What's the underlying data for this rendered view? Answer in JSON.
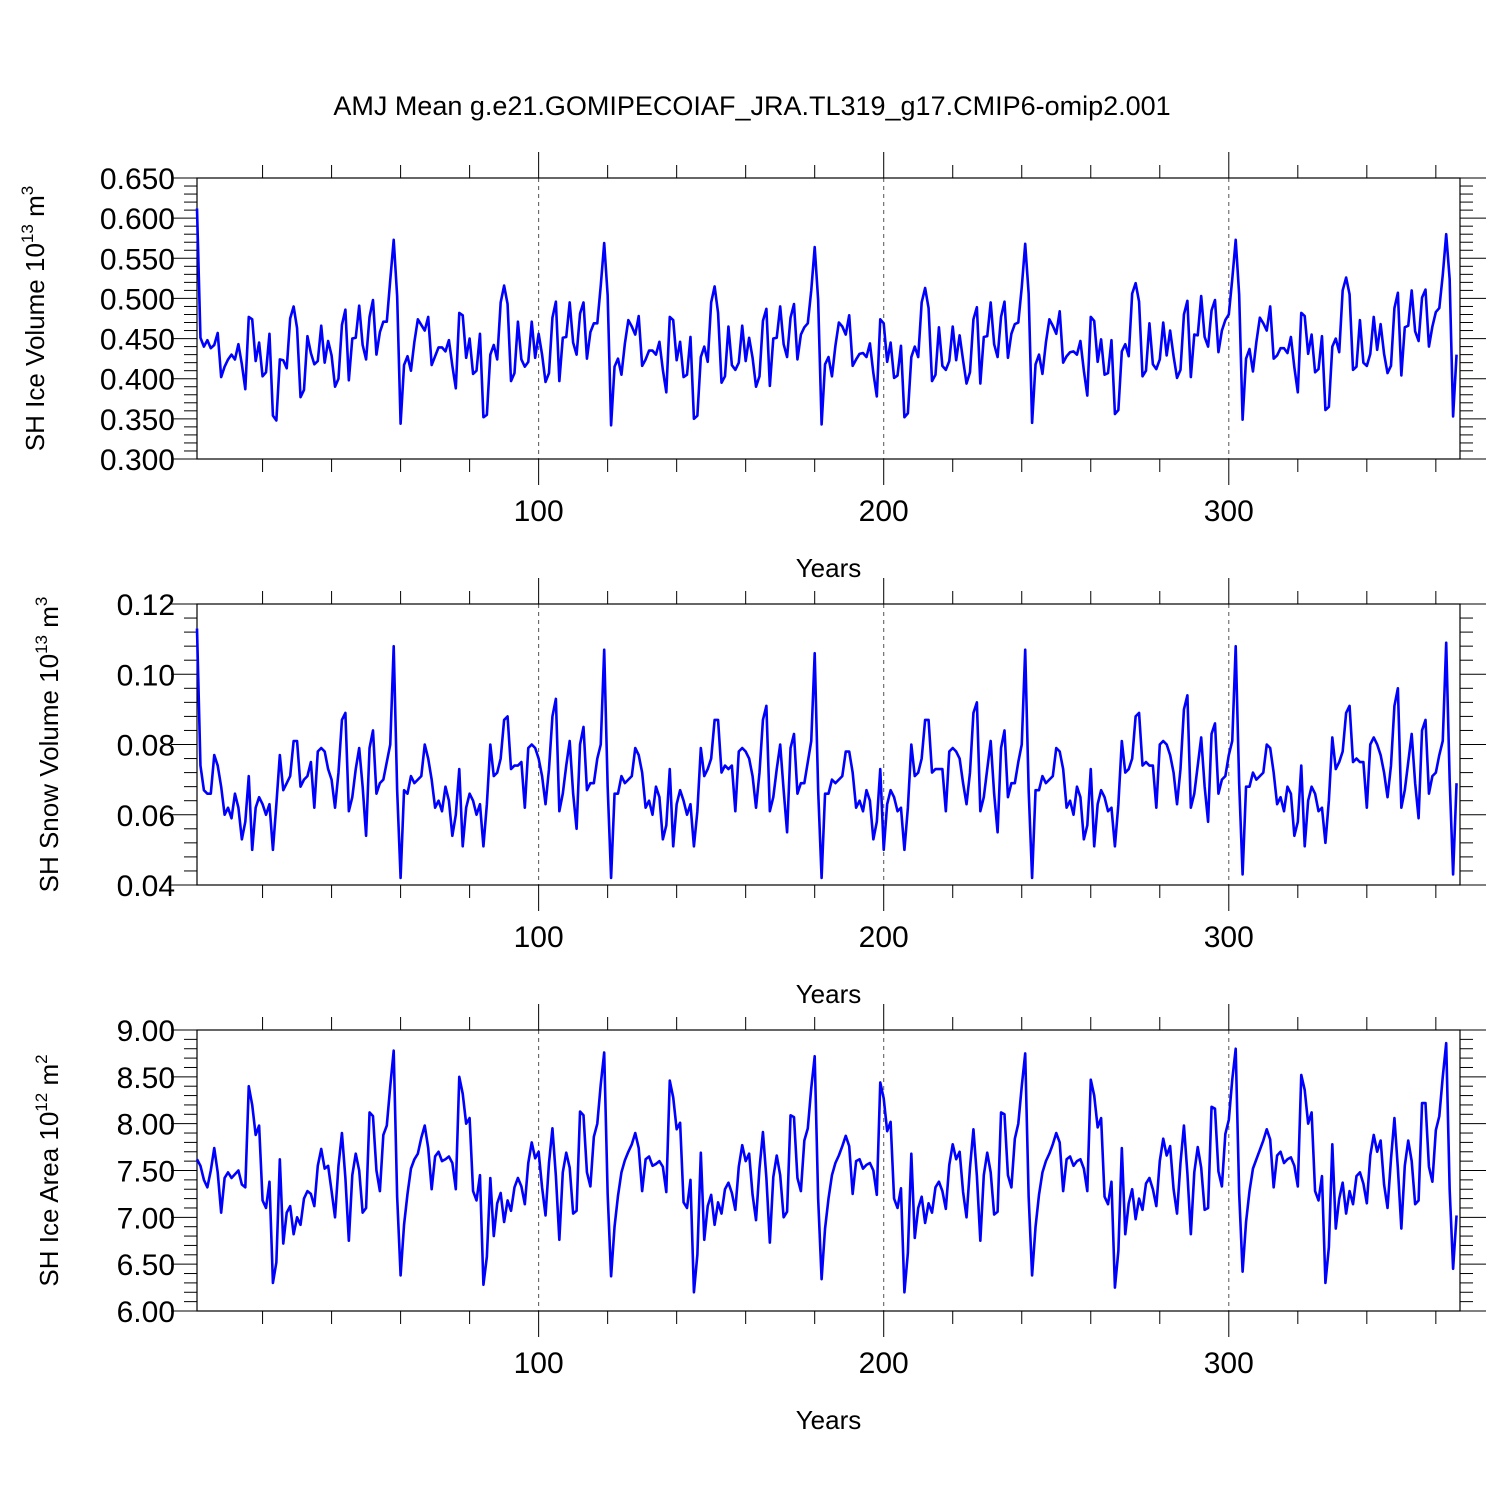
{
  "title": "AMJ Mean g.e21.GOMIPECOIAF_JRA.TL319_g17.CMIP6-omip2.001",
  "line_color": "#0000ff",
  "chart_data": [
    {
      "type": "line",
      "name": "ice-volume",
      "ylabel": {
        "main": "SH Ice Volume 10",
        "exp1": "13",
        "mid": " m",
        "exp2": "3"
      },
      "xlabel": "Years",
      "xlim": [
        1,
        367
      ],
      "ylim": [
        0.3,
        0.65
      ],
      "yticks": [
        0.3,
        0.35,
        0.4,
        0.45,
        0.5,
        0.55,
        0.6,
        0.65
      ],
      "ytick_labels": [
        "0.300",
        "0.350",
        "0.400",
        "0.450",
        "0.500",
        "0.550",
        "0.600",
        "0.650"
      ],
      "xticks": [
        100,
        200,
        300
      ],
      "xtick_labels": [
        "100",
        "200",
        "300"
      ],
      "vlines": [
        100,
        200,
        300
      ],
      "x_start": 1,
      "values": [
        0.612,
        0.451,
        0.44,
        0.448,
        0.438,
        0.442,
        0.457,
        0.402,
        0.415,
        0.424,
        0.43,
        0.424,
        0.443,
        0.418,
        0.387,
        0.477,
        0.474,
        0.422,
        0.445,
        0.403,
        0.408,
        0.456,
        0.354,
        0.348,
        0.424,
        0.423,
        0.413,
        0.475,
        0.49,
        0.463,
        0.377,
        0.386,
        0.453,
        0.432,
        0.418,
        0.422,
        0.466,
        0.42,
        0.447,
        0.429,
        0.39,
        0.4,
        0.467,
        0.486,
        0.398,
        0.45,
        0.451,
        0.491,
        0.442,
        0.424,
        0.477,
        0.498,
        0.43,
        0.458,
        0.471,
        0.471,
        0.523,
        0.573,
        0.503,
        0.344,
        0.417,
        0.428,
        0.41,
        0.446,
        0.474,
        0.467,
        0.46,
        0.477,
        0.417,
        0.428,
        0.439,
        0.439,
        0.434,
        0.448,
        0.416,
        0.388,
        0.482,
        0.479,
        0.426,
        0.45,
        0.406,
        0.41,
        0.456,
        0.352,
        0.355,
        0.43,
        0.442,
        0.424,
        0.495,
        0.516,
        0.493,
        0.397,
        0.407,
        0.471,
        0.424,
        0.415,
        0.421,
        0.471,
        0.426,
        0.456,
        0.43,
        0.396,
        0.407,
        0.476,
        0.496,
        0.397,
        0.451,
        0.452,
        0.495,
        0.445,
        0.43,
        0.481,
        0.495,
        0.425,
        0.458,
        0.469,
        0.469,
        0.516,
        0.569,
        0.504,
        0.342,
        0.415,
        0.425,
        0.405,
        0.444,
        0.473,
        0.465,
        0.455,
        0.478,
        0.416,
        0.424,
        0.435,
        0.435,
        0.43,
        0.446,
        0.411,
        0.383,
        0.477,
        0.473,
        0.423,
        0.446,
        0.402,
        0.405,
        0.452,
        0.35,
        0.354,
        0.427,
        0.44,
        0.421,
        0.495,
        0.515,
        0.482,
        0.395,
        0.403,
        0.465,
        0.417,
        0.411,
        0.42,
        0.466,
        0.422,
        0.451,
        0.426,
        0.39,
        0.403,
        0.472,
        0.487,
        0.391,
        0.45,
        0.451,
        0.49,
        0.443,
        0.427,
        0.476,
        0.493,
        0.424,
        0.455,
        0.464,
        0.469,
        0.51,
        0.564,
        0.498,
        0.343,
        0.418,
        0.427,
        0.403,
        0.441,
        0.47,
        0.465,
        0.455,
        0.479,
        0.416,
        0.424,
        0.431,
        0.432,
        0.427,
        0.444,
        0.407,
        0.378,
        0.474,
        0.469,
        0.421,
        0.445,
        0.401,
        0.404,
        0.441,
        0.352,
        0.357,
        0.427,
        0.44,
        0.427,
        0.495,
        0.513,
        0.488,
        0.397,
        0.405,
        0.464,
        0.416,
        0.411,
        0.422,
        0.465,
        0.423,
        0.454,
        0.423,
        0.394,
        0.408,
        0.474,
        0.489,
        0.394,
        0.452,
        0.453,
        0.495,
        0.443,
        0.427,
        0.477,
        0.496,
        0.426,
        0.456,
        0.468,
        0.47,
        0.514,
        0.568,
        0.506,
        0.345,
        0.418,
        0.43,
        0.406,
        0.445,
        0.474,
        0.466,
        0.456,
        0.484,
        0.42,
        0.428,
        0.433,
        0.434,
        0.43,
        0.447,
        0.41,
        0.379,
        0.477,
        0.472,
        0.421,
        0.449,
        0.405,
        0.407,
        0.448,
        0.356,
        0.361,
        0.434,
        0.443,
        0.428,
        0.506,
        0.519,
        0.496,
        0.403,
        0.41,
        0.469,
        0.418,
        0.412,
        0.424,
        0.47,
        0.429,
        0.46,
        0.428,
        0.401,
        0.411,
        0.48,
        0.497,
        0.402,
        0.455,
        0.454,
        0.503,
        0.452,
        0.44,
        0.485,
        0.498,
        0.433,
        0.46,
        0.473,
        0.48,
        0.524,
        0.573,
        0.505,
        0.349,
        0.425,
        0.437,
        0.409,
        0.446,
        0.476,
        0.469,
        0.46,
        0.49,
        0.425,
        0.429,
        0.438,
        0.438,
        0.432,
        0.452,
        0.414,
        0.383,
        0.482,
        0.478,
        0.431,
        0.455,
        0.408,
        0.412,
        0.453,
        0.361,
        0.365,
        0.44,
        0.45,
        0.433,
        0.51,
        0.526,
        0.505,
        0.411,
        0.415,
        0.473,
        0.42,
        0.416,
        0.431,
        0.477,
        0.436,
        0.468,
        0.431,
        0.407,
        0.416,
        0.488,
        0.507,
        0.404,
        0.464,
        0.466,
        0.51,
        0.459,
        0.447,
        0.501,
        0.511,
        0.44,
        0.465,
        0.483,
        0.488,
        0.529,
        0.58,
        0.524,
        0.353,
        0.43
      ]
    },
    {
      "type": "line",
      "name": "snow-volume",
      "ylabel": {
        "main": "SH Snow Volume 10",
        "exp1": "13",
        "mid": " m",
        "exp2": "3"
      },
      "xlabel": "Years",
      "xlim": [
        1,
        367
      ],
      "ylim": [
        0.04,
        0.12
      ],
      "yticks": [
        0.04,
        0.06,
        0.08,
        0.1,
        0.12
      ],
      "ytick_labels": [
        "0.04",
        "0.06",
        "0.08",
        "0.10",
        "0.12"
      ],
      "xticks": [
        100,
        200,
        300
      ],
      "xtick_labels": [
        "100",
        "200",
        "300"
      ],
      "vlines": [
        100,
        200,
        300
      ],
      "x_start": 1,
      "values": [
        0.113,
        0.074,
        0.067,
        0.066,
        0.066,
        0.077,
        0.074,
        0.068,
        0.06,
        0.062,
        0.059,
        0.066,
        0.062,
        0.053,
        0.058,
        0.071,
        0.05,
        0.062,
        0.065,
        0.063,
        0.06,
        0.063,
        0.05,
        0.063,
        0.077,
        0.067,
        0.069,
        0.071,
        0.081,
        0.081,
        0.068,
        0.07,
        0.071,
        0.075,
        0.062,
        0.078,
        0.079,
        0.078,
        0.073,
        0.07,
        0.062,
        0.072,
        0.087,
        0.089,
        0.061,
        0.065,
        0.073,
        0.079,
        0.068,
        0.054,
        0.079,
        0.084,
        0.066,
        0.069,
        0.07,
        0.075,
        0.08,
        0.108,
        0.067,
        0.042,
        0.067,
        0.066,
        0.071,
        0.069,
        0.07,
        0.071,
        0.08,
        0.076,
        0.07,
        0.062,
        0.064,
        0.061,
        0.068,
        0.064,
        0.054,
        0.06,
        0.073,
        0.051,
        0.062,
        0.066,
        0.064,
        0.06,
        0.063,
        0.051,
        0.063,
        0.08,
        0.071,
        0.072,
        0.076,
        0.087,
        0.088,
        0.073,
        0.074,
        0.074,
        0.075,
        0.062,
        0.079,
        0.08,
        0.079,
        0.076,
        0.071,
        0.063,
        0.073,
        0.088,
        0.093,
        0.061,
        0.066,
        0.074,
        0.081,
        0.066,
        0.056,
        0.08,
        0.085,
        0.067,
        0.069,
        0.069,
        0.076,
        0.08,
        0.107,
        0.068,
        0.042,
        0.066,
        0.066,
        0.071,
        0.069,
        0.07,
        0.071,
        0.079,
        0.077,
        0.072,
        0.062,
        0.064,
        0.06,
        0.068,
        0.065,
        0.053,
        0.057,
        0.073,
        0.051,
        0.063,
        0.067,
        0.064,
        0.06,
        0.063,
        0.051,
        0.061,
        0.079,
        0.071,
        0.073,
        0.076,
        0.087,
        0.087,
        0.072,
        0.074,
        0.073,
        0.074,
        0.061,
        0.078,
        0.079,
        0.078,
        0.076,
        0.071,
        0.062,
        0.072,
        0.087,
        0.091,
        0.061,
        0.065,
        0.073,
        0.08,
        0.067,
        0.055,
        0.079,
        0.083,
        0.066,
        0.069,
        0.069,
        0.075,
        0.081,
        0.106,
        0.067,
        0.042,
        0.066,
        0.066,
        0.07,
        0.069,
        0.07,
        0.071,
        0.078,
        0.078,
        0.072,
        0.062,
        0.064,
        0.061,
        0.067,
        0.064,
        0.053,
        0.058,
        0.073,
        0.05,
        0.063,
        0.067,
        0.065,
        0.061,
        0.062,
        0.05,
        0.062,
        0.08,
        0.071,
        0.072,
        0.076,
        0.087,
        0.087,
        0.072,
        0.073,
        0.073,
        0.073,
        0.061,
        0.078,
        0.079,
        0.078,
        0.076,
        0.069,
        0.063,
        0.072,
        0.089,
        0.092,
        0.061,
        0.065,
        0.073,
        0.081,
        0.066,
        0.055,
        0.079,
        0.084,
        0.065,
        0.069,
        0.069,
        0.075,
        0.08,
        0.107,
        0.067,
        0.042,
        0.067,
        0.067,
        0.071,
        0.069,
        0.07,
        0.071,
        0.079,
        0.078,
        0.073,
        0.062,
        0.064,
        0.06,
        0.068,
        0.065,
        0.053,
        0.057,
        0.073,
        0.051,
        0.063,
        0.067,
        0.065,
        0.061,
        0.062,
        0.051,
        0.063,
        0.081,
        0.072,
        0.073,
        0.076,
        0.088,
        0.089,
        0.074,
        0.075,
        0.074,
        0.074,
        0.062,
        0.08,
        0.081,
        0.08,
        0.077,
        0.072,
        0.063,
        0.073,
        0.09,
        0.094,
        0.062,
        0.066,
        0.074,
        0.082,
        0.068,
        0.058,
        0.083,
        0.086,
        0.066,
        0.07,
        0.071,
        0.077,
        0.081,
        0.108,
        0.069,
        0.043,
        0.068,
        0.068,
        0.072,
        0.07,
        0.071,
        0.072,
        0.08,
        0.079,
        0.072,
        0.063,
        0.065,
        0.061,
        0.068,
        0.066,
        0.054,
        0.058,
        0.074,
        0.051,
        0.064,
        0.068,
        0.066,
        0.061,
        0.062,
        0.052,
        0.064,
        0.082,
        0.073,
        0.075,
        0.078,
        0.089,
        0.091,
        0.075,
        0.076,
        0.075,
        0.075,
        0.062,
        0.08,
        0.082,
        0.08,
        0.077,
        0.072,
        0.065,
        0.074,
        0.091,
        0.096,
        0.062,
        0.067,
        0.075,
        0.083,
        0.069,
        0.059,
        0.084,
        0.087,
        0.066,
        0.071,
        0.072,
        0.077,
        0.081,
        0.109,
        0.07,
        0.043,
        0.069
      ]
    },
    {
      "type": "line",
      "name": "ice-area",
      "ylabel": {
        "main": "SH Ice Area 10",
        "exp1": "12",
        "mid": " m",
        "exp2": "2"
      },
      "xlabel": "Years",
      "xlim": [
        1,
        367
      ],
      "ylim": [
        6.0,
        9.0
      ],
      "yticks": [
        6.0,
        6.5,
        7.0,
        7.5,
        8.0,
        8.5,
        9.0
      ],
      "ytick_labels": [
        "6.00",
        "6.50",
        "7.00",
        "7.50",
        "8.00",
        "8.50",
        "9.00"
      ],
      "xticks": [
        100,
        200,
        300
      ],
      "xtick_labels": [
        "100",
        "200",
        "300"
      ],
      "vlines": [
        100,
        200,
        300
      ],
      "x_start": 1,
      "values": [
        7.62,
        7.55,
        7.4,
        7.32,
        7.5,
        7.74,
        7.48,
        7.05,
        7.42,
        7.48,
        7.42,
        7.46,
        7.5,
        7.35,
        7.32,
        8.4,
        8.2,
        7.88,
        7.98,
        7.18,
        7.1,
        7.38,
        6.3,
        6.52,
        7.62,
        6.72,
        7.05,
        7.12,
        6.82,
        7.0,
        6.92,
        7.2,
        7.28,
        7.25,
        7.12,
        7.55,
        7.73,
        7.52,
        7.55,
        7.28,
        7.0,
        7.55,
        7.9,
        7.42,
        6.75,
        7.45,
        7.68,
        7.5,
        7.05,
        7.1,
        8.12,
        8.08,
        7.5,
        7.28,
        7.88,
        7.98,
        8.4,
        8.78,
        7.22,
        6.38,
        6.92,
        7.25,
        7.52,
        7.62,
        7.68,
        7.85,
        7.98,
        7.74,
        7.3,
        7.65,
        7.7,
        7.6,
        7.62,
        7.65,
        7.58,
        7.3,
        8.5,
        8.32,
        8.0,
        8.06,
        7.28,
        7.18,
        7.45,
        6.28,
        6.58,
        7.42,
        6.8,
        7.15,
        7.26,
        6.95,
        7.18,
        7.07,
        7.32,
        7.42,
        7.33,
        7.14,
        7.58,
        7.8,
        7.63,
        7.7,
        7.32,
        7.02,
        7.58,
        7.95,
        7.44,
        6.76,
        7.48,
        7.69,
        7.53,
        7.04,
        7.07,
        8.13,
        8.09,
        7.48,
        7.33,
        7.86,
        8.0,
        8.42,
        8.76,
        7.25,
        6.37,
        6.9,
        7.23,
        7.48,
        7.61,
        7.7,
        7.78,
        7.9,
        7.74,
        7.28,
        7.62,
        7.65,
        7.55,
        7.57,
        7.6,
        7.54,
        7.27,
        8.46,
        8.28,
        7.94,
        8.01,
        7.16,
        7.1,
        7.4,
        6.2,
        6.6,
        7.69,
        6.76,
        7.12,
        7.24,
        6.92,
        7.16,
        7.04,
        7.3,
        7.37,
        7.26,
        7.08,
        7.54,
        7.77,
        7.6,
        7.68,
        7.24,
        6.97,
        7.52,
        7.91,
        7.42,
        6.73,
        7.43,
        7.66,
        7.45,
        7.0,
        7.06,
        8.09,
        8.07,
        7.42,
        7.28,
        7.82,
        7.95,
        8.38,
        8.72,
        7.2,
        6.34,
        6.88,
        7.2,
        7.45,
        7.58,
        7.66,
        7.76,
        7.87,
        7.76,
        7.25,
        7.6,
        7.62,
        7.52,
        7.56,
        7.58,
        7.5,
        7.24,
        8.44,
        8.27,
        7.92,
        8.02,
        7.2,
        7.1,
        7.31,
        6.2,
        6.62,
        7.68,
        6.78,
        7.1,
        7.22,
        6.94,
        7.15,
        7.05,
        7.32,
        7.38,
        7.28,
        7.09,
        7.56,
        7.78,
        7.62,
        7.7,
        7.27,
        7.0,
        7.53,
        7.94,
        7.44,
        6.75,
        7.45,
        7.69,
        7.48,
        7.03,
        7.06,
        8.12,
        8.1,
        7.45,
        7.32,
        7.84,
        8.0,
        8.4,
        8.75,
        7.22,
        6.38,
        6.9,
        7.24,
        7.48,
        7.6,
        7.68,
        7.78,
        7.9,
        7.8,
        7.28,
        7.62,
        7.65,
        7.55,
        7.6,
        7.62,
        7.52,
        7.28,
        8.47,
        8.3,
        7.96,
        8.06,
        7.22,
        7.14,
        7.38,
        6.25,
        6.64,
        7.74,
        6.82,
        7.15,
        7.3,
        6.98,
        7.2,
        7.08,
        7.36,
        7.42,
        7.3,
        7.12,
        7.6,
        7.84,
        7.66,
        7.76,
        7.3,
        7.04,
        7.58,
        7.98,
        7.47,
        6.82,
        7.48,
        7.75,
        7.53,
        7.08,
        7.1,
        8.18,
        8.16,
        7.49,
        7.33,
        7.89,
        8.04,
        8.47,
        8.8,
        7.26,
        6.42,
        6.95,
        7.28,
        7.52,
        7.62,
        7.72,
        7.82,
        7.94,
        7.83,
        7.32,
        7.66,
        7.7,
        7.58,
        7.62,
        7.64,
        7.55,
        7.33,
        8.52,
        8.36,
        8.0,
        8.12,
        7.28,
        7.18,
        7.44,
        6.3,
        6.68,
        7.78,
        6.88,
        7.2,
        7.37,
        7.04,
        7.28,
        7.14,
        7.44,
        7.48,
        7.36,
        7.15,
        7.66,
        7.88,
        7.7,
        7.82,
        7.35,
        7.1,
        7.62,
        8.06,
        7.52,
        6.88,
        7.55,
        7.82,
        7.6,
        7.14,
        7.18,
        8.22,
        8.22,
        7.54,
        7.38,
        7.93,
        8.08,
        8.5,
        8.86,
        7.3,
        6.45,
        7.02
      ]
    }
  ]
}
